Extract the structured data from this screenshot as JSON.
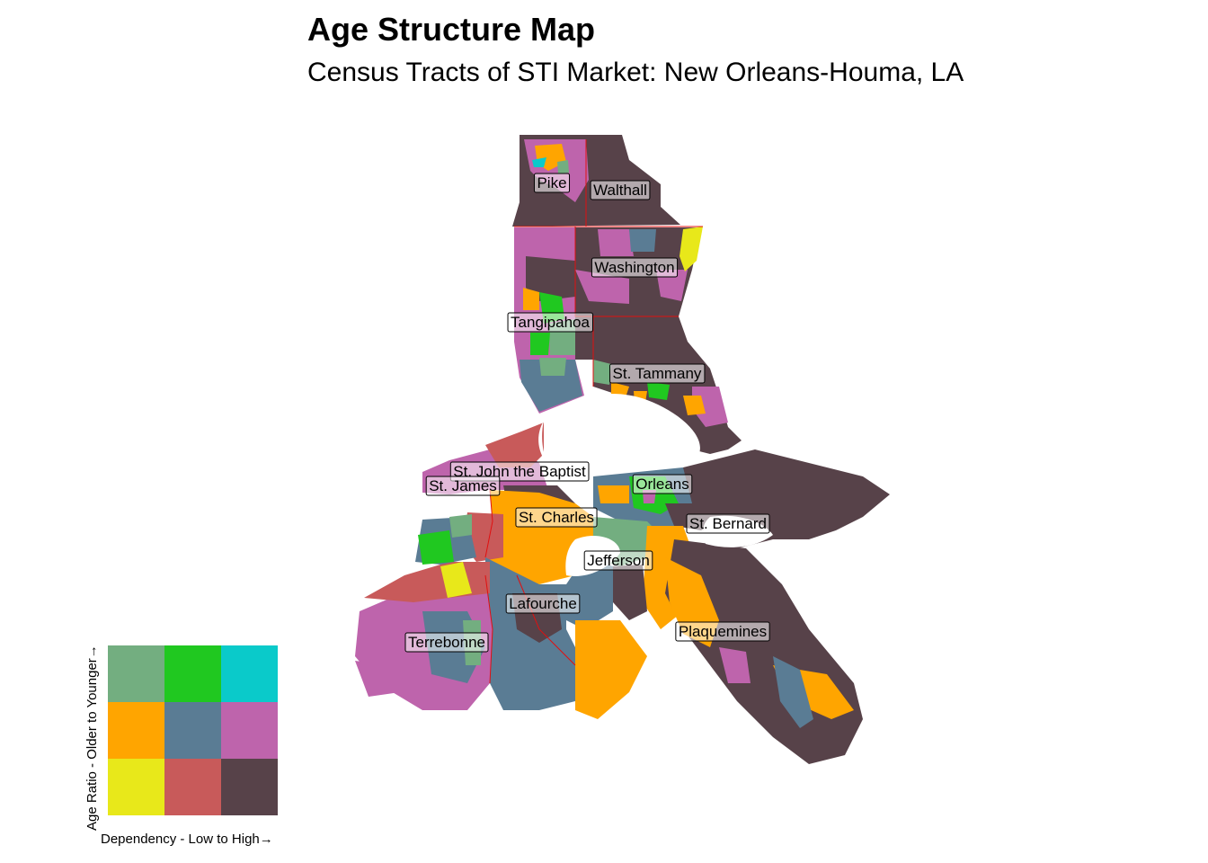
{
  "header": {
    "title": "Age Structure Map",
    "subtitle": "Census Tracts of STI Market: New Orleans-Houma, LA"
  },
  "palette": {
    "older_low": "#E8E81A",
    "older_mid": "#C85A5A",
    "older_high": "#574249",
    "mid_low": "#FFA500",
    "mid_mid": "#5A7C94",
    "mid_high": "#BE64AC",
    "younger_low": "#73AE80",
    "younger_mid": "#20C820",
    "younger_high": "#0ACACA",
    "water": "#ffffff",
    "county_border": "#e01010"
  },
  "map": {
    "counties": [
      {
        "id": "pike",
        "label": "Pike"
      },
      {
        "id": "walthall",
        "label": "Walthall"
      },
      {
        "id": "washington",
        "label": "Washington"
      },
      {
        "id": "tangipahoa",
        "label": "Tangipahoa"
      },
      {
        "id": "st-tammany",
        "label": "St. Tammany"
      },
      {
        "id": "st-john",
        "label": "St. John the Baptist"
      },
      {
        "id": "st-james",
        "label": "St. James"
      },
      {
        "id": "orleans",
        "label": "Orleans"
      },
      {
        "id": "st-charles",
        "label": "St. Charles"
      },
      {
        "id": "st-bernard",
        "label": "St. Bernard"
      },
      {
        "id": "jefferson",
        "label": "Jefferson"
      },
      {
        "id": "lafourche",
        "label": "Lafourche"
      },
      {
        "id": "plaquemines",
        "label": "Plaquemines"
      },
      {
        "id": "terrebonne",
        "label": "Terrebonne"
      }
    ]
  },
  "legend": {
    "x_label": "Dependency - Low to High→",
    "y_label": "Age Ratio - Older to Younger→",
    "grid": [
      [
        "#73AE80",
        "#20C820",
        "#0ACACA"
      ],
      [
        "#FFA500",
        "#5A7C94",
        "#BE64AC"
      ],
      [
        "#E8E81A",
        "#C85A5A",
        "#574249"
      ]
    ]
  }
}
